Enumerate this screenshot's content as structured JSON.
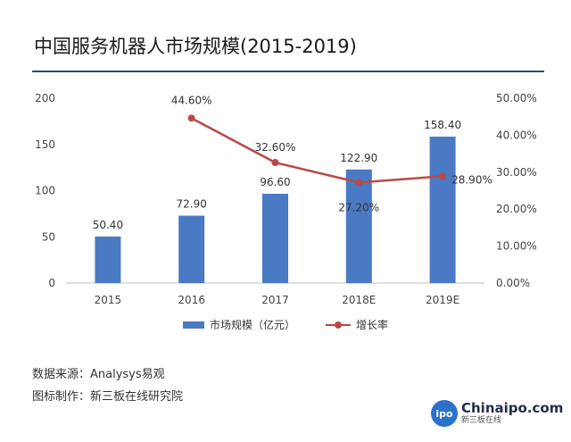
{
  "page": {
    "title": "中国服务机器人市场规模(2015-2019)",
    "source_line": "数据来源：Analysys易观",
    "credit_line": "图标制作：新三板在线研究院",
    "logo": {
      "mark": "ipo",
      "name": "Chinaipo.com",
      "tagline": "新三板在线"
    }
  },
  "chart_data": {
    "type": "bar",
    "categories": [
      "2015",
      "2016",
      "2017",
      "2018E",
      "2019E"
    ],
    "series": [
      {
        "name": "市场规模（亿元）",
        "type": "bar",
        "axis": "left",
        "values": [
          50.4,
          72.9,
          96.6,
          122.9,
          158.4
        ],
        "labels": [
          "50.40",
          "72.90",
          "96.60",
          "122.90",
          "158.40"
        ],
        "color": "#4a7ac4"
      },
      {
        "name": "增长率",
        "type": "line",
        "axis": "right",
        "values": [
          null,
          44.6,
          32.6,
          27.2,
          28.9
        ],
        "labels": [
          null,
          "44.60%",
          "32.60%",
          "27.20%",
          "28.90%"
        ],
        "color": "#b84a46"
      }
    ],
    "left_axis": {
      "min": 0,
      "max": 200,
      "ticks": [
        0,
        50,
        100,
        150,
        200
      ],
      "tick_labels": [
        "0",
        "50",
        "100",
        "150",
        "200"
      ]
    },
    "right_axis": {
      "min": 0,
      "max": 50,
      "ticks": [
        0,
        10,
        20,
        30,
        40,
        50
      ],
      "tick_labels": [
        "0.00%",
        "10.00%",
        "20.00%",
        "30.00%",
        "40.00%",
        "50.00%"
      ]
    },
    "grid": false,
    "legend_position": "bottom"
  }
}
